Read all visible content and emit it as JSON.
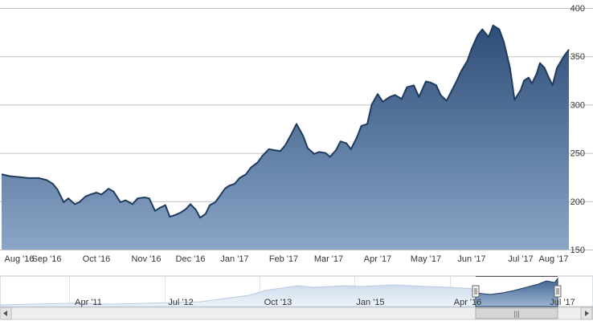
{
  "chart_data": {
    "type": "area",
    "title": "",
    "xlabel": "",
    "ylabel": "",
    "ylim": [
      150,
      400
    ],
    "y_ticks": [
      "150",
      "200",
      "250",
      "300",
      "350",
      "400"
    ],
    "y_tick_values": [
      150,
      200,
      250,
      300,
      350,
      400
    ],
    "x_ticks": [
      "Aug '16",
      "Sep '16",
      "Oct '16",
      "Nov '16",
      "Dec '16",
      "Jan '17",
      "Feb '17",
      "Mar '17",
      "Apr '17",
      "May '17",
      "Jun '17",
      "Jul '17",
      "Aug '17"
    ],
    "grid": true,
    "legend": "none",
    "colors": {
      "line": "#1f3b5e",
      "area_top": "#2e4d77",
      "area_bottom": "#8aa6c8",
      "grid": "#c0c0c0"
    },
    "x": [
      "2016-08-15",
      "2016-08-18",
      "2016-08-22",
      "2016-08-25",
      "2016-08-29",
      "2016-09-01",
      "2016-09-05",
      "2016-09-08",
      "2016-09-12",
      "2016-09-15",
      "2016-09-19",
      "2016-09-22",
      "2016-09-26",
      "2016-09-29",
      "2016-10-03",
      "2016-10-06",
      "2016-10-10",
      "2016-10-13",
      "2016-10-17",
      "2016-10-20",
      "2016-10-24",
      "2016-10-27",
      "2016-10-31",
      "2016-11-03",
      "2016-11-07",
      "2016-11-10",
      "2016-11-14",
      "2016-11-17",
      "2016-11-21",
      "2016-11-24",
      "2016-11-28",
      "2016-12-01",
      "2016-12-05",
      "2016-12-08",
      "2016-12-12",
      "2016-12-15",
      "2016-12-19",
      "2016-12-22",
      "2016-12-26",
      "2016-12-29",
      "2017-01-02",
      "2017-01-05",
      "2017-01-09",
      "2017-01-12",
      "2017-01-16",
      "2017-01-19",
      "2017-01-23",
      "2017-01-26",
      "2017-01-30",
      "2017-02-02",
      "2017-02-06",
      "2017-02-09",
      "2017-02-13",
      "2017-02-16",
      "2017-02-20",
      "2017-02-23",
      "2017-02-27",
      "2017-03-02",
      "2017-03-06",
      "2017-03-09",
      "2017-03-13",
      "2017-03-16",
      "2017-03-20",
      "2017-03-23",
      "2017-03-27",
      "2017-03-30",
      "2017-04-03",
      "2017-04-06",
      "2017-04-10",
      "2017-04-13",
      "2017-04-17",
      "2017-04-20",
      "2017-04-24",
      "2017-04-27",
      "2017-05-01",
      "2017-05-04",
      "2017-05-08",
      "2017-05-11",
      "2017-05-15",
      "2017-05-18",
      "2017-05-22",
      "2017-05-25",
      "2017-05-29",
      "2017-06-01",
      "2017-06-05",
      "2017-06-08",
      "2017-06-12",
      "2017-06-15",
      "2017-06-19",
      "2017-06-22",
      "2017-06-26",
      "2017-06-29",
      "2017-07-03",
      "2017-07-06",
      "2017-07-10",
      "2017-07-13",
      "2017-07-17",
      "2017-07-20",
      "2017-07-24",
      "2017-07-27",
      "2017-07-31",
      "2017-08-03",
      "2017-08-07",
      "2017-08-10"
    ],
    "values": [
      228,
      226,
      225,
      224,
      224,
      222,
      218,
      212,
      199,
      203,
      197,
      199,
      205,
      207,
      209,
      207,
      213,
      210,
      199,
      201,
      197,
      203,
      204,
      203,
      190,
      193,
      196,
      184,
      186,
      188,
      192,
      197,
      191,
      183,
      187,
      196,
      199,
      205,
      213,
      216,
      218,
      224,
      228,
      235,
      240,
      247,
      254,
      253,
      252,
      258,
      270,
      280,
      268,
      255,
      249,
      251,
      250,
      246,
      253,
      262,
      260,
      254,
      266,
      278,
      280,
      300,
      311,
      303,
      308,
      310,
      306,
      318,
      320,
      308,
      324,
      323,
      320,
      310,
      304,
      313,
      325,
      335,
      345,
      358,
      372,
      378,
      370,
      382,
      378,
      365,
      338,
      305,
      315,
      325,
      328,
      322,
      332,
      343,
      338,
      330,
      320,
      338,
      350,
      357
    ],
    "navigator": {
      "x_ticks": [
        "Apr '11",
        "Jul '12",
        "Oct '13",
        "Jan '15",
        "Apr '16",
        "Jul '17"
      ],
      "grip_icon": "|||"
    }
  }
}
